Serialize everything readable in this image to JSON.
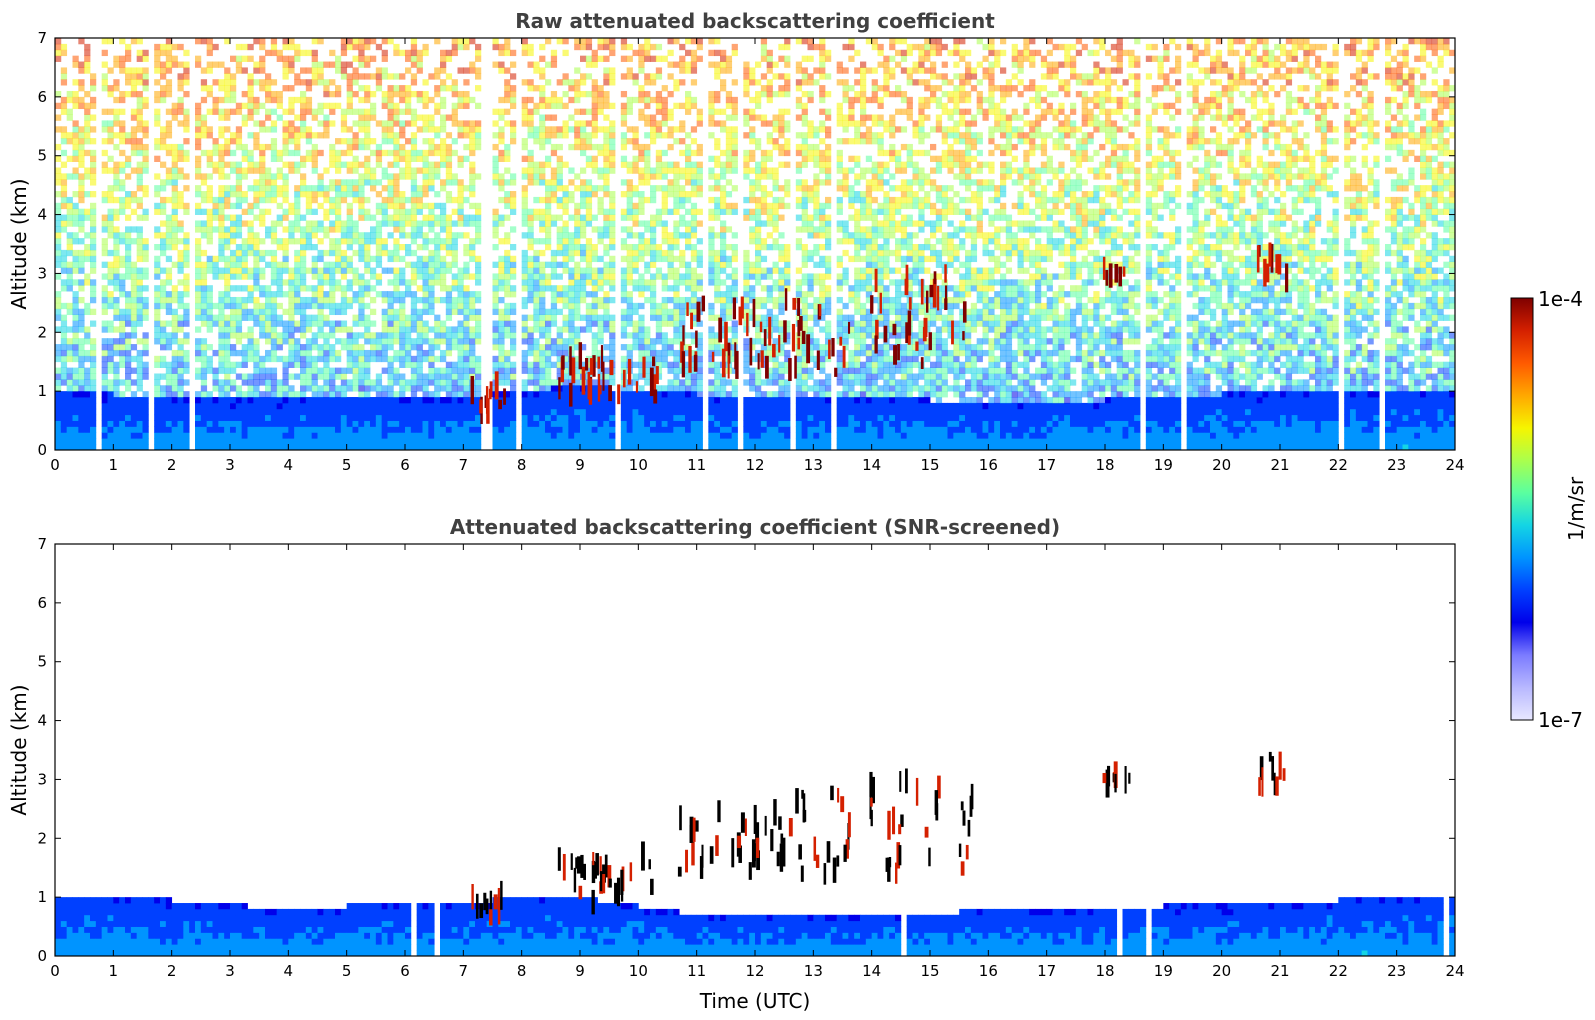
{
  "chart_data": [
    {
      "type": "heatmap",
      "title": "Raw attenuated backscattering coefficient",
      "xlabel": "",
      "ylabel": "Altitude (km)",
      "xlim": [
        0,
        24
      ],
      "ylim": [
        0,
        7
      ],
      "x_ticks": [
        "0",
        "1",
        "2",
        "3",
        "4",
        "5",
        "6",
        "7",
        "8",
        "9",
        "10",
        "11",
        "12",
        "13",
        "14",
        "15",
        "16",
        "17",
        "18",
        "19",
        "20",
        "21",
        "22",
        "23",
        "24"
      ],
      "y_ticks": [
        "0",
        "1",
        "2",
        "3",
        "4",
        "5",
        "6",
        "7"
      ],
      "z_scale": "log",
      "clim": [
        1e-07,
        0.0001
      ],
      "boundary_layer_top_km": [
        [
          0,
          1.0
        ],
        [
          3,
          0.85
        ],
        [
          5,
          0.9
        ],
        [
          7,
          0.9
        ],
        [
          8,
          1.0
        ],
        [
          9,
          1.1
        ],
        [
          10,
          1.0
        ],
        [
          12,
          0.9
        ],
        [
          14,
          0.9
        ],
        [
          16,
          0.8
        ],
        [
          18,
          0.85
        ],
        [
          20,
          0.95
        ],
        [
          22,
          1.05
        ],
        [
          24,
          1.05
        ]
      ],
      "cloud_features": [
        {
          "x": [
            7.1,
            7.7
          ],
          "y": [
            0.65,
            1.1
          ]
        },
        {
          "x": [
            8.6,
            10.3
          ],
          "y": [
            0.9,
            1.7
          ]
        },
        {
          "x": [
            10.6,
            12.5
          ],
          "y": [
            1.4,
            2.5
          ]
        },
        {
          "x": [
            12.5,
            13.6
          ],
          "y": [
            1.3,
            2.8
          ]
        },
        {
          "x": [
            13.9,
            15.7
          ],
          "y": [
            1.4,
            3.0
          ]
        },
        {
          "x": [
            17.9,
            18.4
          ],
          "y": [
            2.9,
            3.1
          ]
        },
        {
          "x": [
            20.6,
            21.1
          ],
          "y": [
            2.85,
            3.45
          ]
        }
      ]
    },
    {
      "type": "heatmap",
      "title": "Attenuated backscattering coefficient (SNR-screened)",
      "xlabel": "Time (UTC)",
      "ylabel": "Altitude (km)",
      "xlim": [
        0,
        24
      ],
      "ylim": [
        0,
        7
      ],
      "x_ticks": [
        "0",
        "1",
        "2",
        "3",
        "4",
        "5",
        "6",
        "7",
        "8",
        "9",
        "10",
        "11",
        "12",
        "13",
        "14",
        "15",
        "16",
        "17",
        "18",
        "19",
        "20",
        "21",
        "22",
        "23",
        "24"
      ],
      "y_ticks": [
        "0",
        "1",
        "2",
        "3",
        "4",
        "5",
        "6",
        "7"
      ],
      "z_scale": "log",
      "clim": [
        1e-07,
        0.0001
      ],
      "screened_top_km": [
        [
          0,
          1.05
        ],
        [
          3,
          0.9
        ],
        [
          4,
          0.75
        ],
        [
          5,
          0.85
        ],
        [
          7,
          0.9
        ],
        [
          8,
          1.0
        ],
        [
          9,
          1.0
        ],
        [
          10,
          0.85
        ],
        [
          11,
          0.7
        ],
        [
          13,
          0.65
        ],
        [
          15,
          0.7
        ],
        [
          16,
          0.8
        ],
        [
          17,
          0.75
        ],
        [
          19,
          0.85
        ],
        [
          21,
          0.9
        ],
        [
          24,
          1.05
        ]
      ]
    }
  ],
  "colorbar": {
    "label": "1/m/sr",
    "max_label": "1e-4",
    "min_label": "1e-7",
    "colors": [
      "#7f0000",
      "#d42000",
      "#ff5a00",
      "#ffa800",
      "#f6f500",
      "#aaff4d",
      "#5affa0",
      "#14d5e4",
      "#0094ff",
      "#0040ff",
      "#0000ea",
      "#7b7bff",
      "#b8b8ff",
      "#e8e8ff"
    ]
  }
}
